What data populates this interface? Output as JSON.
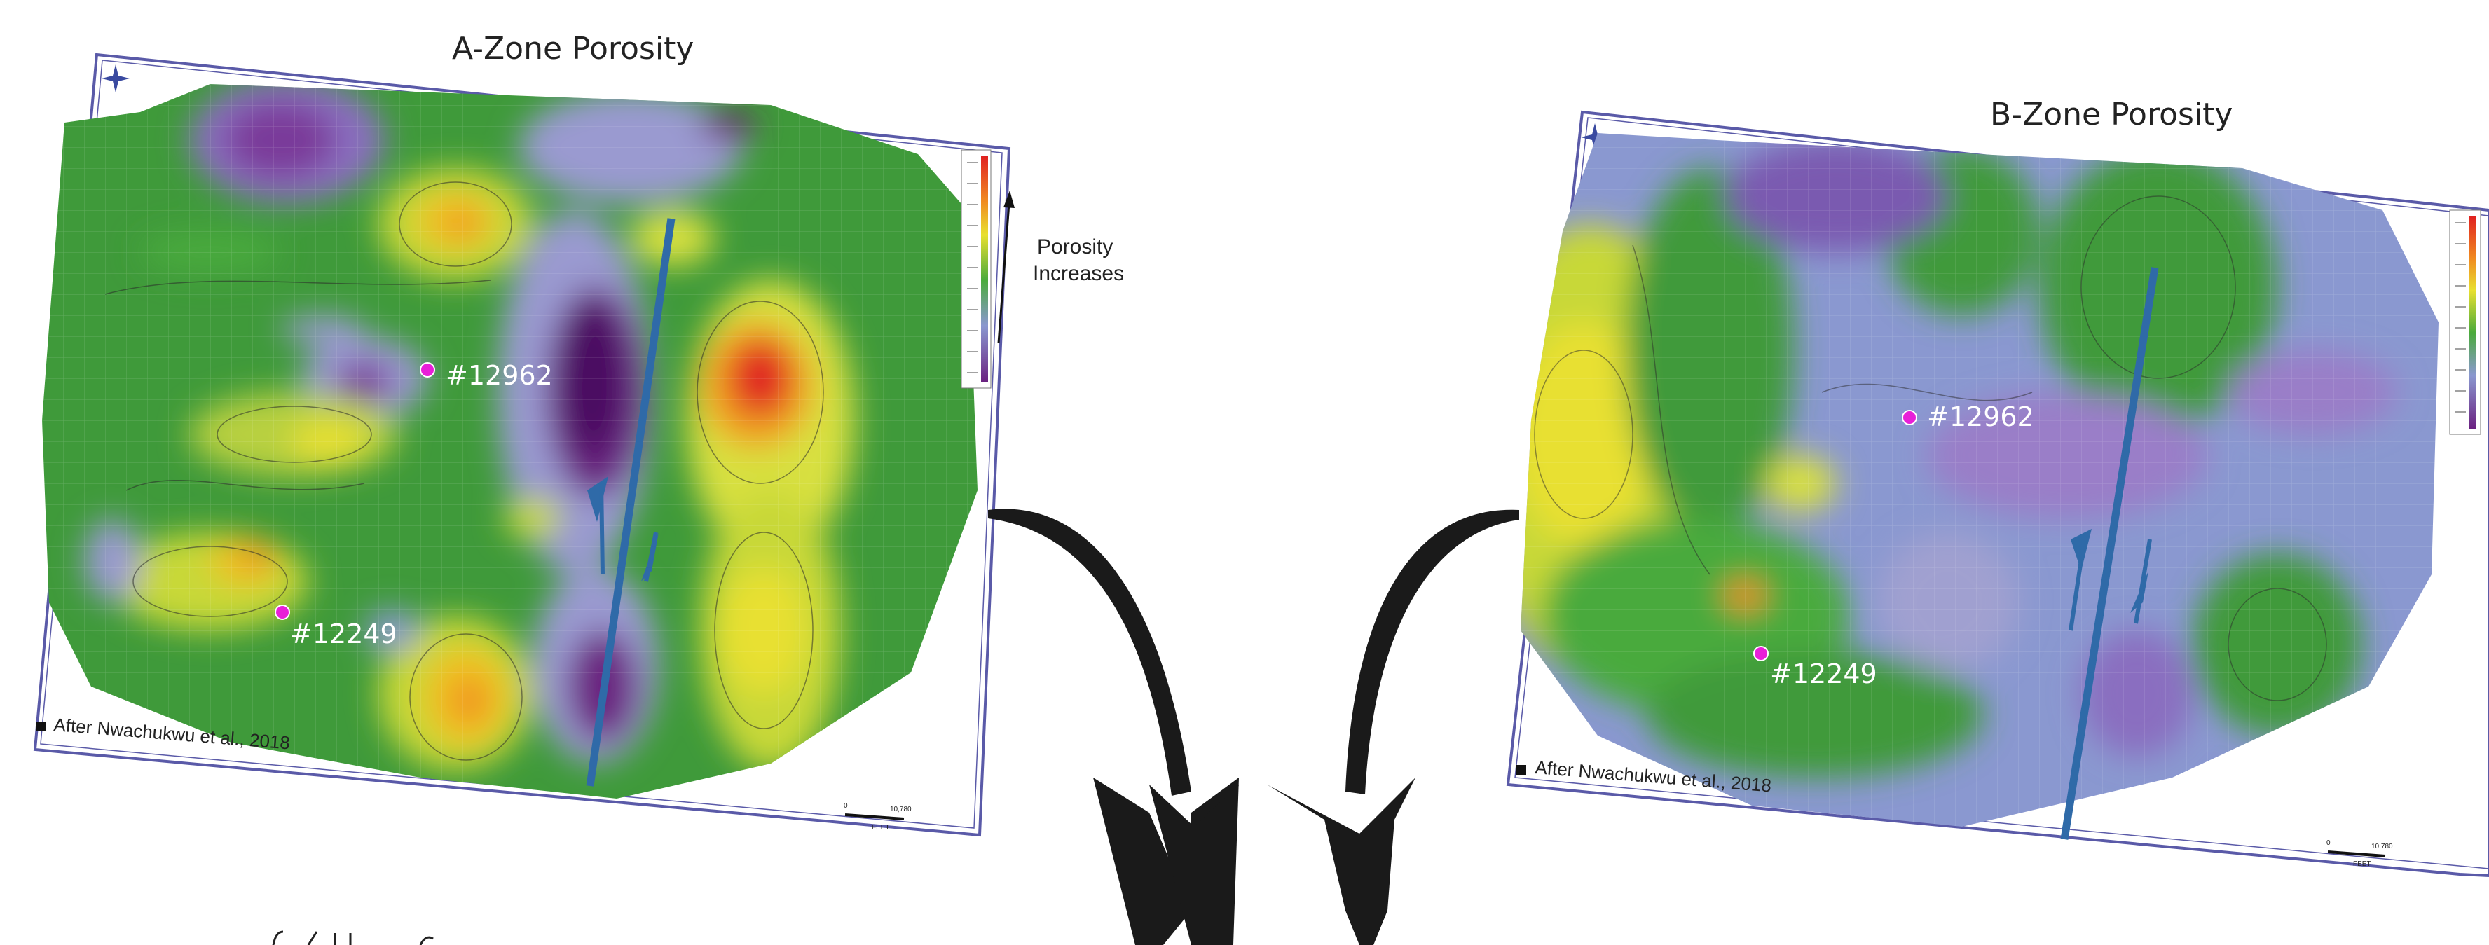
{
  "maps": [
    {
      "title": "A-Zone Porosity",
      "wells": [
        {
          "label": "#12962"
        },
        {
          "label": "#12249"
        }
      ],
      "citation": "After Nwachukwu et al., 2018",
      "scale_label": "FEET",
      "scale_ticks": [
        "0",
        "10,780"
      ],
      "annotation": {
        "line1": "Porosity",
        "line2": "Increases"
      }
    },
    {
      "title": "B-Zone Porosity",
      "wells": [
        {
          "label": "#12962"
        },
        {
          "label": "#12249"
        }
      ],
      "citation": "After Nwachukwu et al., 2018",
      "scale_label": "FEET",
      "scale_ticks": [
        "0",
        "10,780"
      ]
    }
  ],
  "colors": {
    "well_marker": "#e81fd8",
    "fault_line": "#2f6aa8",
    "arrow": "#1a1a1a",
    "frame": "#5a5aa8"
  }
}
